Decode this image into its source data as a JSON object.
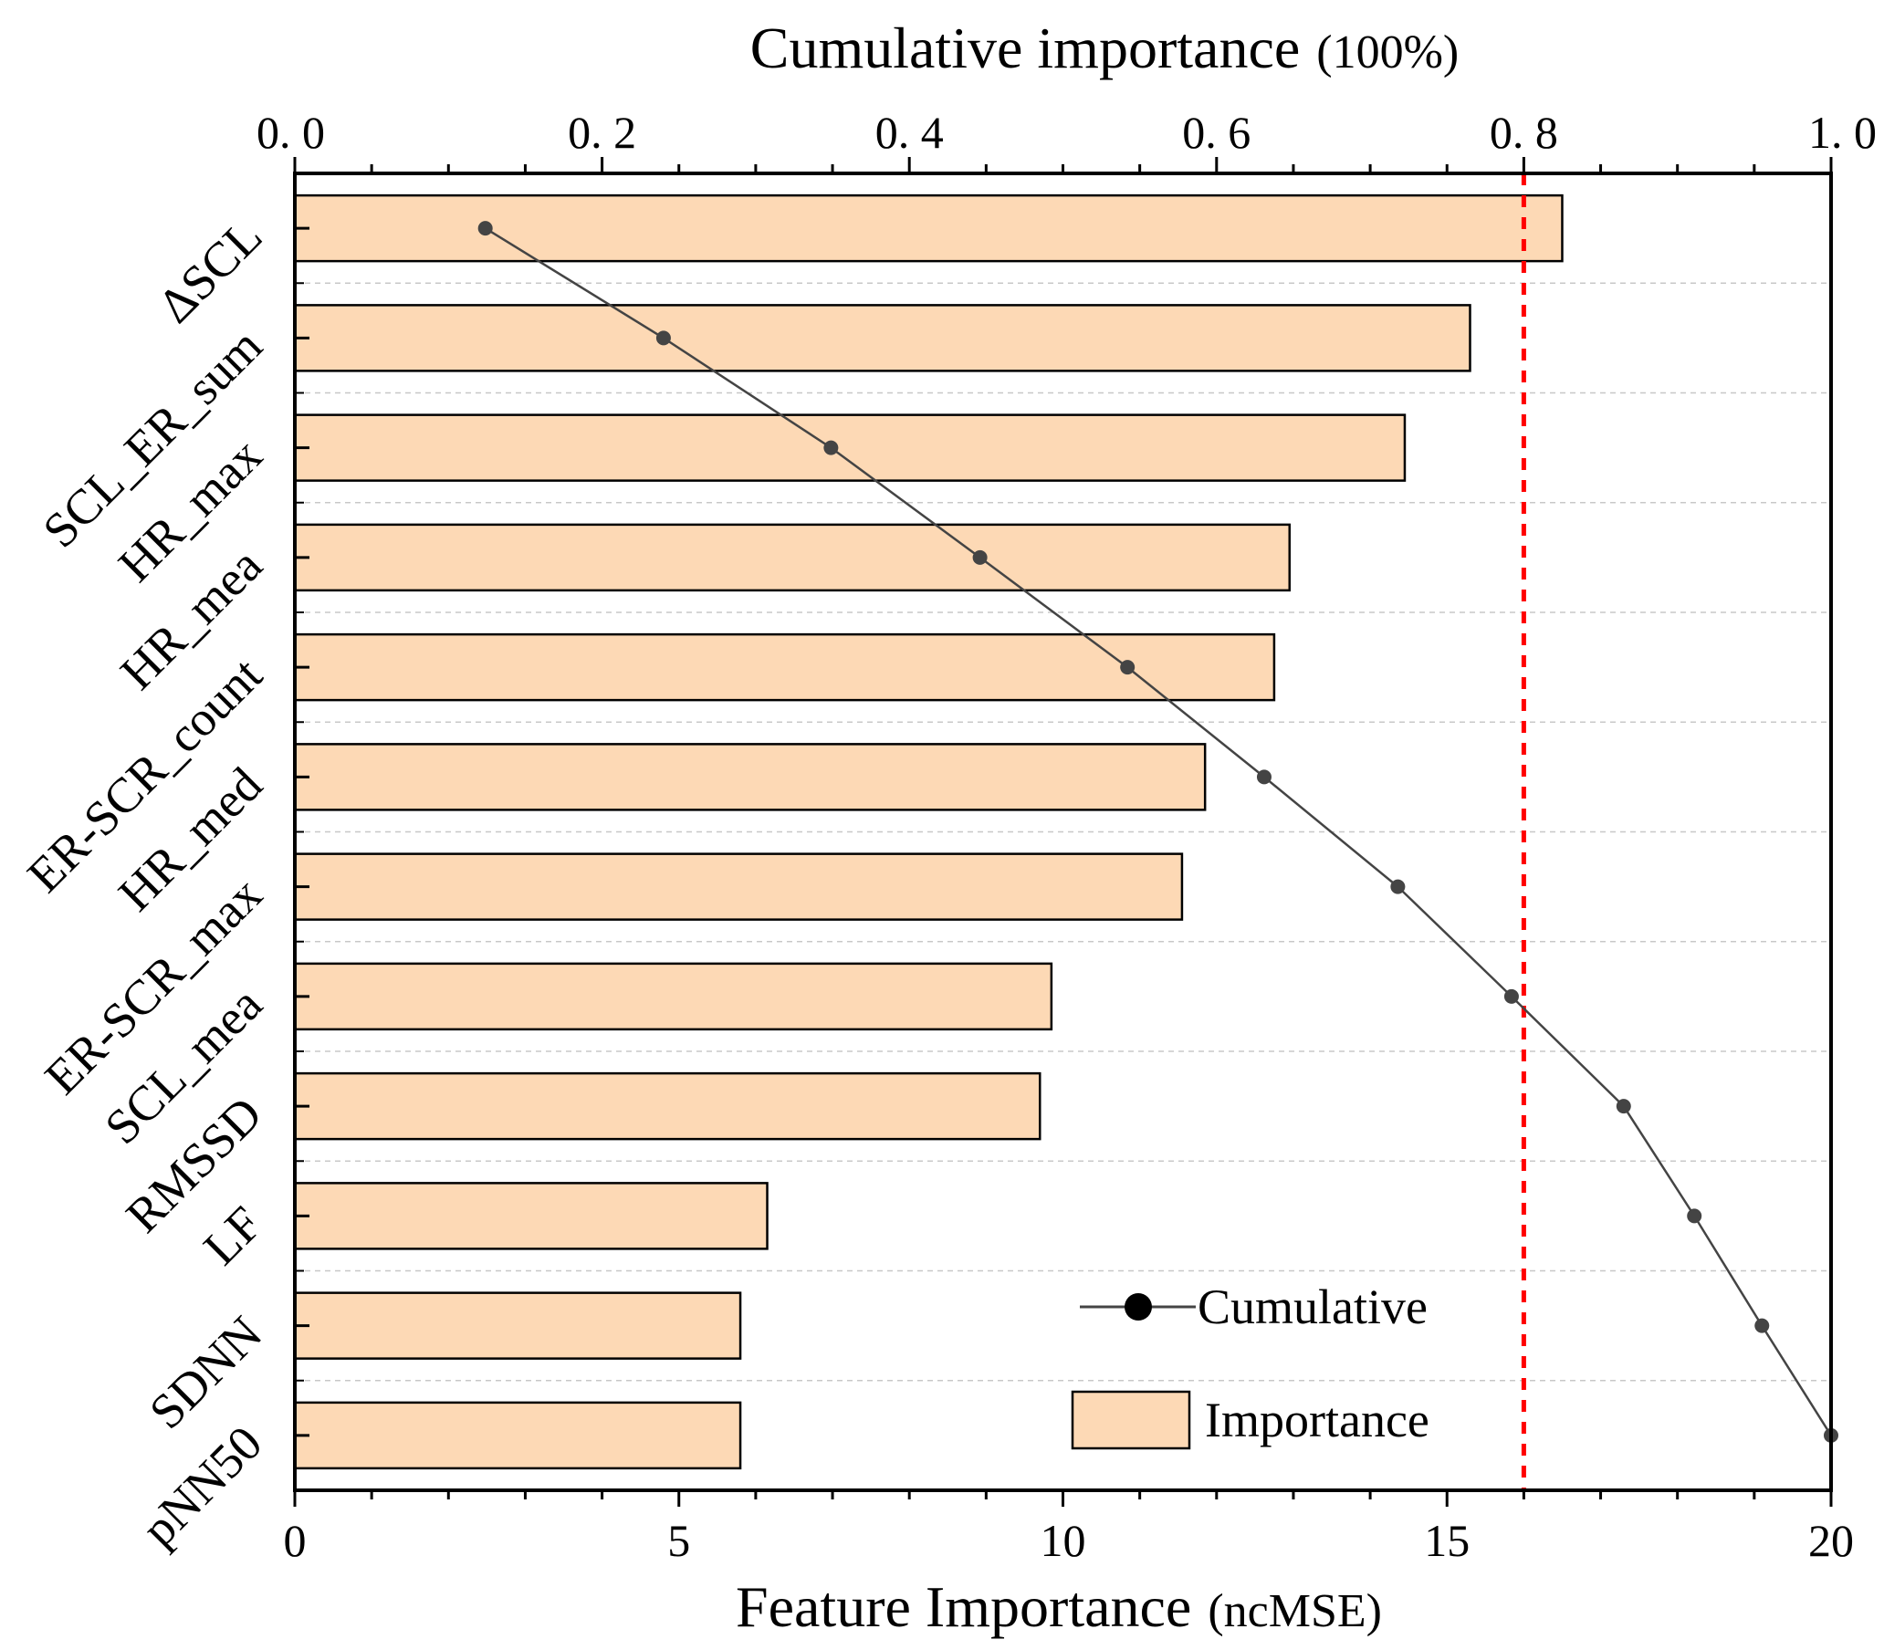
{
  "chart_data": {
    "type": "bar",
    "orientation": "horizontal",
    "categories": [
      "ΔSCL",
      "SCL_ER_sum",
      "HR_max",
      "HR_mea",
      "ER-SCR_count",
      "HR_med",
      "ER-SCR_max",
      "SCL_mea",
      "RMSSD",
      "LF",
      "SDNN",
      "pNN50"
    ],
    "series": [
      {
        "name": "Importance",
        "type": "bar",
        "color": "#fdd9b5",
        "values": [
          16.5,
          15.3,
          14.45,
          12.95,
          12.75,
          11.85,
          11.55,
          9.85,
          9.7,
          6.15,
          5.8,
          5.8
        ]
      },
      {
        "name": "Cumulative",
        "type": "line",
        "axis": "top",
        "color": "#444444",
        "values": [
          0.124,
          0.24,
          0.349,
          0.446,
          0.542,
          0.631,
          0.718,
          0.792,
          0.865,
          0.911,
          0.955,
          1.0
        ]
      }
    ],
    "title": "Cumulative importance",
    "title_unit": "(100%)",
    "xlabel": "Feature Importance",
    "xlabel_unit": "(ncMSE)",
    "xlim": [
      0,
      20
    ],
    "x_ticks": [
      "0",
      "5",
      "10",
      "15",
      "20"
    ],
    "x_top_lim": [
      0,
      1
    ],
    "x_top_ticks": [
      "0. 0",
      "0. 2",
      "0. 4",
      "0. 6",
      "0. 8",
      "1. 0"
    ],
    "threshold": 0.8,
    "threshold_color": "#ff0000",
    "legend": {
      "position": "bottom-right",
      "entries": [
        "Cumulative",
        "Importance"
      ]
    }
  }
}
